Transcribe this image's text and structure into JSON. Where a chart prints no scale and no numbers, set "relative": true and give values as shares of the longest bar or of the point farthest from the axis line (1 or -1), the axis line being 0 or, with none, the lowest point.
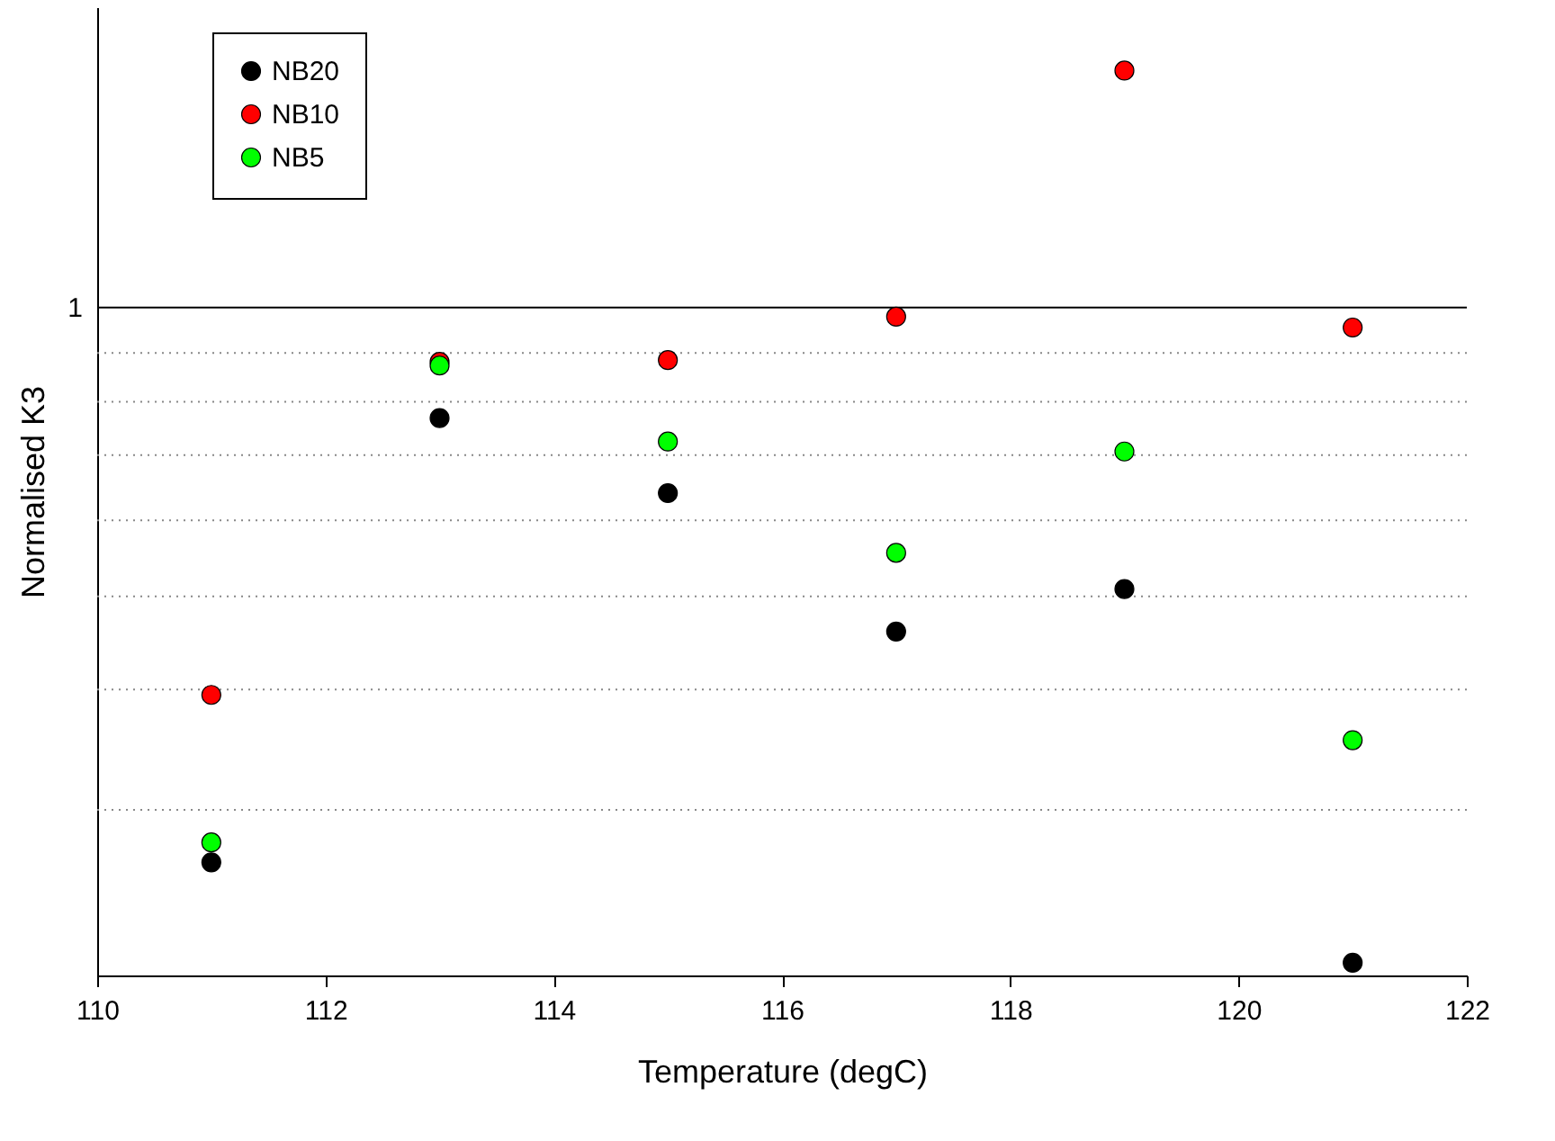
{
  "chart_data": {
    "type": "scatter",
    "xlabel": "Temperature (degC)",
    "ylabel": "Normalised K3",
    "relative": true,
    "x": [
      111,
      113,
      115,
      117,
      119,
      121
    ],
    "series": [
      {
        "name": "NB20",
        "color": "#000000",
        "values": [
          0.125,
          0.616,
          0.533,
          0.38,
          0.427,
          0.014
        ]
      },
      {
        "name": "NB10",
        "color": "#ff0000",
        "values": [
          0.31,
          0.678,
          0.68,
          0.728,
          1,
          0.716
        ]
      },
      {
        "name": "NB5",
        "color": "#00ff00",
        "values": [
          0.147,
          0.674,
          0.59,
          0.467,
          0.579,
          0.26
        ]
      }
    ],
    "xlim": [
      110,
      122
    ],
    "xticks": [
      110,
      112,
      114,
      116,
      118,
      120,
      122
    ],
    "ref_lines": [
      {
        "axis": "y",
        "value": 0.738,
        "label": "1",
        "color": "#000000",
        "line_style": "solid"
      },
      {
        "axis": "y",
        "value": 0.688,
        "color": "#888888",
        "line_style": "dotted"
      },
      {
        "axis": "y",
        "value": 0.634,
        "color": "#888888",
        "line_style": "dotted"
      },
      {
        "axis": "y",
        "value": 0.575,
        "color": "#888888",
        "line_style": "dotted"
      },
      {
        "axis": "y",
        "value": 0.503,
        "color": "#888888",
        "line_style": "dotted"
      },
      {
        "axis": "y",
        "value": 0.419,
        "color": "#888888",
        "line_style": "dotted"
      },
      {
        "axis": "y",
        "value": 0.316,
        "color": "#888888",
        "line_style": "dotted"
      },
      {
        "axis": "y",
        "value": 0.183,
        "color": "#888888",
        "line_style": "dotted"
      }
    ],
    "legend": "top left",
    "marker": "circle"
  }
}
